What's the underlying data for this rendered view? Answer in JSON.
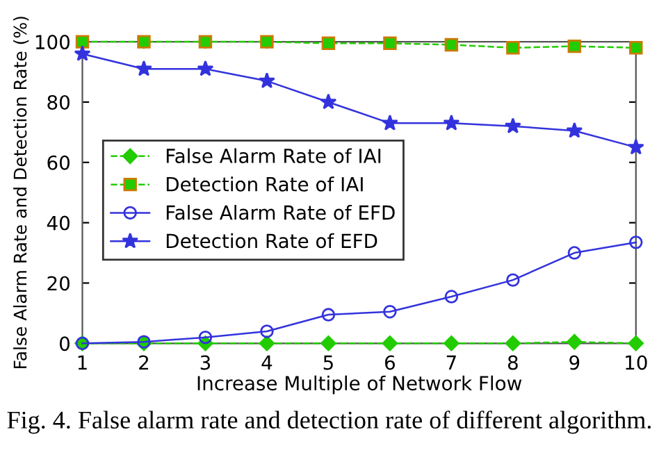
{
  "chart_data": {
    "type": "line",
    "xlabel": "Increase Multiple of Network Flow",
    "ylabel": "False Alarm Rate and Detection Rate (%)",
    "x": [
      1,
      2,
      3,
      4,
      5,
      6,
      7,
      8,
      9,
      10
    ],
    "series": [
      {
        "name": "False Alarm Rate of IAI",
        "color": "#22cc00",
        "marker": "diamond",
        "line_style": "dashed",
        "values": [
          0,
          0,
          0,
          0,
          0,
          0,
          0,
          0,
          0.5,
          0
        ]
      },
      {
        "name": "Detection Rate of IAI",
        "color": "#22cc00",
        "marker": "square",
        "line_style": "dashed",
        "values": [
          100,
          100,
          100,
          100,
          99.5,
          99.5,
          99,
          98,
          98.5,
          98
        ]
      },
      {
        "name": "False Alarm Rate of EFD",
        "color": "#3333dd",
        "marker": "circle",
        "line_style": "solid",
        "values": [
          0,
          0.5,
          2,
          4,
          9.5,
          10.5,
          15.5,
          21,
          30,
          33.5
        ]
      },
      {
        "name": "Detection Rate of EFD",
        "color": "#3333dd",
        "marker": "star",
        "line_style": "solid",
        "values": [
          96,
          91,
          91,
          87,
          80,
          73,
          73,
          72,
          70.5,
          65
        ]
      }
    ],
    "xlim": [
      1,
      10
    ],
    "xticks": [
      1,
      2,
      3,
      4,
      5,
      6,
      7,
      8,
      9,
      10
    ],
    "ylim": [
      0,
      100
    ],
    "yticks": [
      0,
      20,
      40,
      60,
      80,
      100
    ],
    "grid": false,
    "legend": "center left",
    "annotations": [
      "Fig. 4. False alarm rate and detection rate of different algorithm."
    ]
  }
}
